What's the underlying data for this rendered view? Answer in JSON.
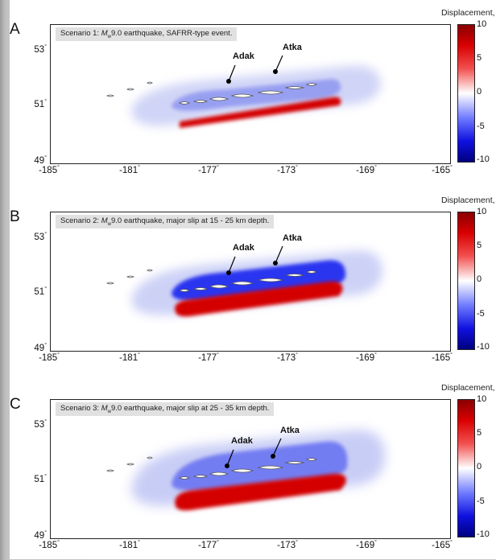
{
  "colorbar": {
    "title": "Displacement, m",
    "ticks": [
      "10",
      "5",
      "0",
      "-5",
      "-10"
    ],
    "range": [
      -10,
      10
    ]
  },
  "axes": {
    "x_ticks": [
      "-185",
      "-181",
      "-177",
      "-173",
      "-169",
      "-165"
    ],
    "y_ticks": [
      "53",
      "51",
      "49"
    ],
    "degree_symbol": "°",
    "xlim": [
      -185,
      -165
    ],
    "ylim": [
      49,
      54
    ]
  },
  "panels": [
    {
      "label": "A",
      "caption_prefix": "Scenario 1: ",
      "caption_mag": "M",
      "caption_sub": "w",
      "caption_rest": "9.0 earthquake, SAFRR-type event.",
      "city1": "Adak",
      "city2": "Atka"
    },
    {
      "label": "B",
      "caption_prefix": "Scenario 2: ",
      "caption_mag": "M",
      "caption_sub": "w",
      "caption_rest": "9.0 earthquake, major slip at 15 - 25 km depth.",
      "city1": "Adak",
      "city2": "Atka"
    },
    {
      "label": "C",
      "caption_prefix": "Scenario 3: ",
      "caption_mag": "M",
      "caption_sub": "w",
      "caption_rest": "9.0 earthquake, major slip at 25 - 35 km depth.",
      "city1": "Adak",
      "city2": "Atka"
    }
  ],
  "colors": {
    "uplift": "#d40000",
    "subsidence": "#1a1aff",
    "background": "#ffffff"
  }
}
